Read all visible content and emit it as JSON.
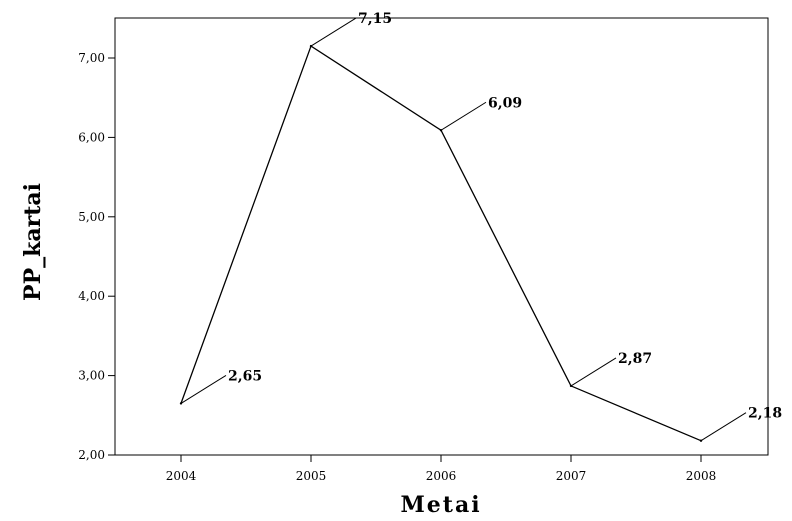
{
  "chart_data": {
    "type": "line",
    "xlabel": "Metai",
    "ylabel": "PP_kartai",
    "categories": [
      "2004",
      "2005",
      "2006",
      "2007",
      "2008"
    ],
    "series": [
      {
        "values": [
          2.65,
          7.15,
          6.09,
          2.87,
          2.18
        ],
        "labels": [
          "2,65",
          "7,15",
          "6,09",
          "2,87",
          "2,18"
        ]
      }
    ],
    "ylim": [
      2.0,
      7.3
    ],
    "yticks": [
      2.0,
      3.0,
      4.0,
      5.0,
      6.0,
      7.0
    ],
    "ytick_labels": [
      "2,00",
      "3,00",
      "4,00",
      "5,00",
      "6,00",
      "7,00"
    ],
    "grid": false,
    "legend": "none",
    "line_color": "#000000"
  }
}
